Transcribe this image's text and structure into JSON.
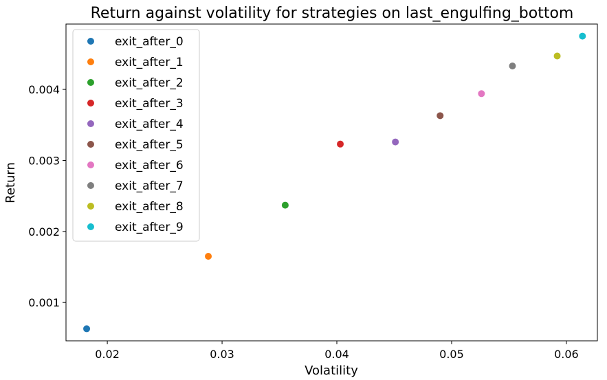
{
  "chart_data": {
    "type": "scatter",
    "title": "Return against volatility for strategies on last_engulfing_bottom",
    "xlabel": "Volatility",
    "ylabel": "Return",
    "xlim": [
      0.0164,
      0.0627
    ],
    "ylim": [
      0.00046,
      0.00492
    ],
    "xticks": [
      0.02,
      0.03,
      0.04,
      0.05,
      0.06
    ],
    "xtick_labels": [
      "0.02",
      "0.03",
      "0.04",
      "0.05",
      "0.06"
    ],
    "yticks": [
      0.001,
      0.002,
      0.003,
      0.004
    ],
    "ytick_labels": [
      "0.001",
      "0.002",
      "0.003",
      "0.004"
    ],
    "grid": false,
    "legend_position": "top-left",
    "series": [
      {
        "name": "exit_after_0",
        "color": "#1f77b4",
        "x": 0.0182,
        "y": 0.00063
      },
      {
        "name": "exit_after_1",
        "color": "#ff7f0e",
        "x": 0.0288,
        "y": 0.00165
      },
      {
        "name": "exit_after_2",
        "color": "#2ca02c",
        "x": 0.0355,
        "y": 0.00237
      },
      {
        "name": "exit_after_3",
        "color": "#d62728",
        "x": 0.0403,
        "y": 0.00323
      },
      {
        "name": "exit_after_4",
        "color": "#9467bd",
        "x": 0.0451,
        "y": 0.00326
      },
      {
        "name": "exit_after_5",
        "color": "#8c564b",
        "x": 0.049,
        "y": 0.00363
      },
      {
        "name": "exit_after_6",
        "color": "#e377c2",
        "x": 0.0526,
        "y": 0.00394
      },
      {
        "name": "exit_after_7",
        "color": "#7f7f7f",
        "x": 0.0553,
        "y": 0.00433
      },
      {
        "name": "exit_after_8",
        "color": "#bcbd22",
        "x": 0.0592,
        "y": 0.00447
      },
      {
        "name": "exit_after_9",
        "color": "#17becf",
        "x": 0.0614,
        "y": 0.00475
      }
    ]
  }
}
